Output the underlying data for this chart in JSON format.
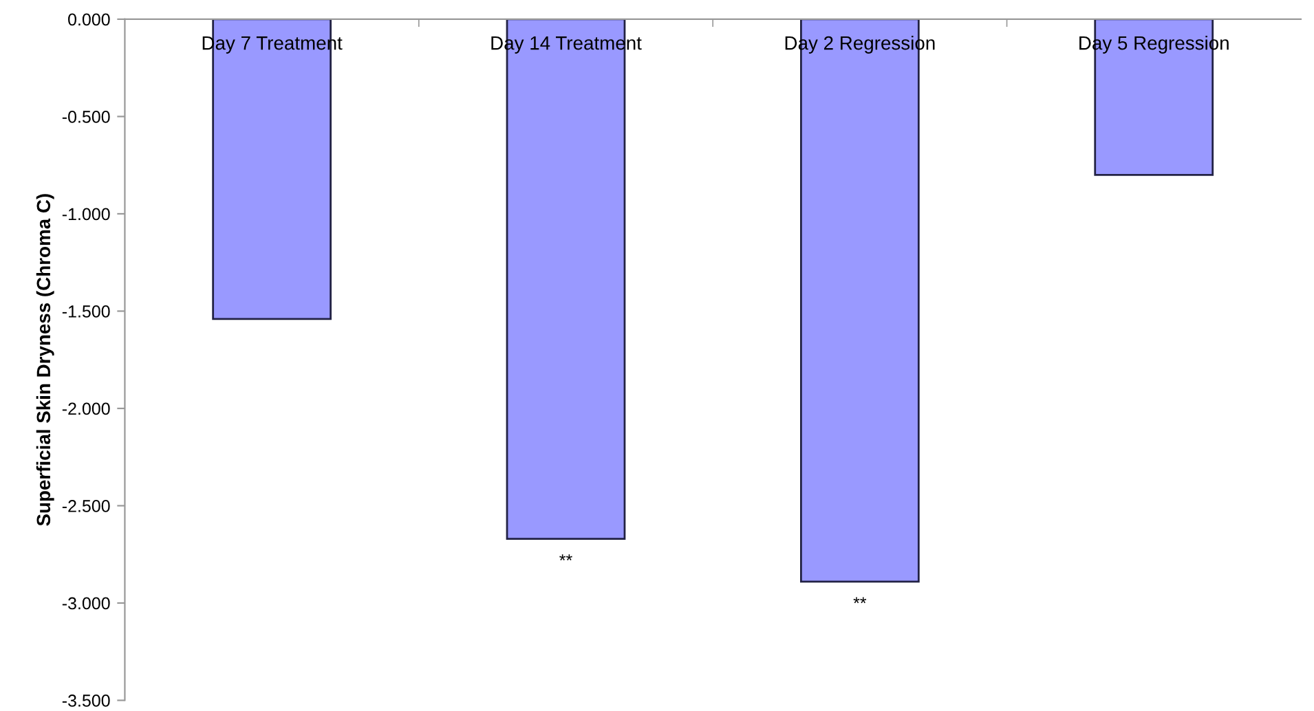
{
  "chart_data": {
    "type": "bar",
    "ylabel": "Superficial Skin Dryness (Chroma C)",
    "categories": [
      "Day 7 Treatment",
      "Day 14 Treatment",
      "Day 2 Regression",
      "Day 5 Regression"
    ],
    "values": [
      -1.54,
      -2.67,
      -2.89,
      -0.8
    ],
    "color": "#9999ff",
    "ylim": [
      -3.5,
      0
    ],
    "yticks": [
      {
        "value": 0,
        "label": "0.000"
      },
      {
        "value": -0.5,
        "label": "-0.500"
      },
      {
        "value": -1.0,
        "label": "-1.000"
      },
      {
        "value": -1.5,
        "label": "-1.500"
      },
      {
        "value": -2.0,
        "label": "-2.000"
      },
      {
        "value": -2.5,
        "label": "-2.500"
      },
      {
        "value": -3.0,
        "label": "-3.000"
      },
      {
        "value": -3.5,
        "label": "-3.500"
      }
    ],
    "annotations": [
      {
        "text": "**",
        "x": "Day 14 Treatment",
        "y": -2.67
      },
      {
        "text": "**",
        "x": "Day 2 Regression",
        "y": -2.89
      }
    ],
    "grid": false,
    "legend": false
  }
}
